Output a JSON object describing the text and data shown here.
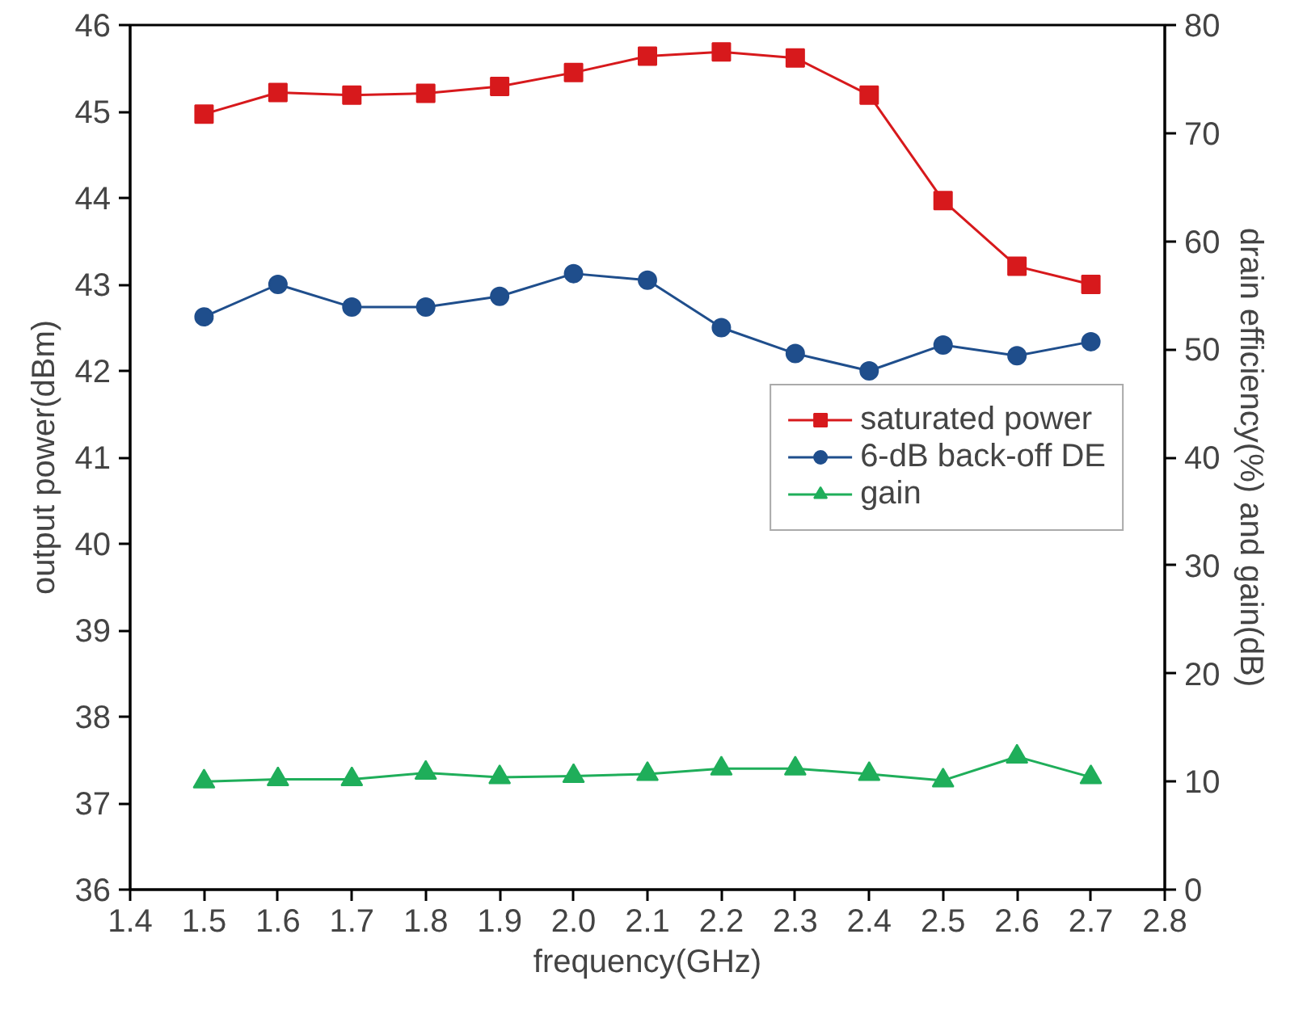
{
  "chart_data": {
    "type": "line",
    "xlabel": "frequency(GHz)",
    "ylabel": "output power(dBm)",
    "y2label": "drain efficiency(%) and gain(dB)",
    "x": [
      1.5,
      1.6,
      1.7,
      1.8,
      1.9,
      2.0,
      2.1,
      2.2,
      2.3,
      2.4,
      2.5,
      2.6,
      2.7
    ],
    "series": [
      {
        "name": "saturated power",
        "color": "#d7191c",
        "marker": "square",
        "values": [
          44.97,
          45.22,
          45.19,
          45.21,
          45.29,
          45.45,
          45.64,
          45.69,
          45.62,
          45.19,
          43.97,
          43.21,
          43.0
        ]
      },
      {
        "name": "6-dB back-off DE",
        "color": "#1f4e8c",
        "marker": "circle",
        "axis": "y2",
        "values": [
          53.0,
          56.0,
          53.9,
          53.9,
          54.9,
          57.0,
          56.4,
          52.0,
          49.6,
          48.0,
          50.4,
          49.4,
          50.7
        ]
      },
      {
        "name": "gain",
        "color": "#1fae5a",
        "marker": "triangle",
        "axis": "y2",
        "values": [
          10.0,
          10.2,
          10.2,
          10.8,
          10.4,
          10.5,
          10.7,
          11.2,
          11.2,
          10.7,
          10.1,
          12.3,
          10.4
        ]
      }
    ],
    "xlim": [
      1.4,
      2.8
    ],
    "xticks": [
      {
        "value": 1.4,
        "label": "1.4"
      },
      {
        "value": 1.5,
        "label": "1.5"
      },
      {
        "value": 1.6,
        "label": "1.6"
      },
      {
        "value": 1.7,
        "label": "1.7"
      },
      {
        "value": 1.8,
        "label": "1.8"
      },
      {
        "value": 1.9,
        "label": "1.9"
      },
      {
        "value": 2.0,
        "label": "2.0"
      },
      {
        "value": 2.1,
        "label": "2.1"
      },
      {
        "value": 2.2,
        "label": "2.2"
      },
      {
        "value": 2.3,
        "label": "2.3"
      },
      {
        "value": 2.4,
        "label": "2.4"
      },
      {
        "value": 2.5,
        "label": "2.5"
      },
      {
        "value": 2.6,
        "label": "2.6"
      },
      {
        "value": 2.7,
        "label": "2.7"
      },
      {
        "value": 2.8,
        "label": "2.8"
      }
    ],
    "ylim": [
      36,
      46
    ],
    "yticks": [
      36,
      37,
      38,
      39,
      40,
      41,
      42,
      43,
      44,
      45,
      46
    ],
    "y2lim": [
      0,
      80
    ],
    "y2ticks": [
      0,
      10,
      20,
      30,
      40,
      50,
      60,
      70,
      80
    ],
    "grid": false,
    "legend": "right",
    "line_style": "solid"
  }
}
